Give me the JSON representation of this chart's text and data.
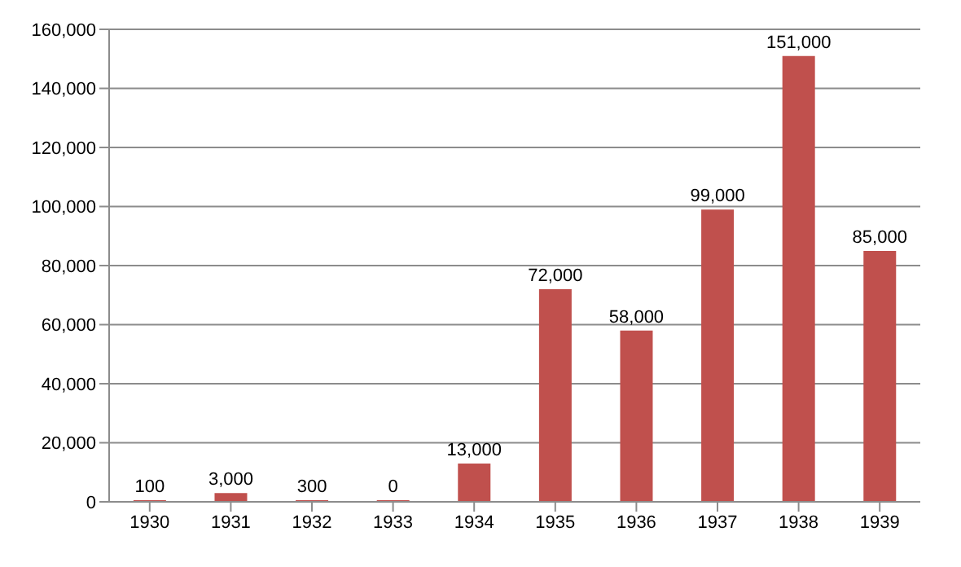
{
  "chart_data": {
    "type": "bar",
    "categories": [
      "1930",
      "1931",
      "1932",
      "1933",
      "1934",
      "1935",
      "1936",
      "1937",
      "1938",
      "1939"
    ],
    "values": [
      100,
      3000,
      300,
      0,
      13000,
      72000,
      58000,
      99000,
      151000,
      85000
    ],
    "value_labels": [
      "100",
      "3,000",
      "300",
      "0",
      "13,000",
      "72,000",
      "58,000",
      "99,000",
      "151,000",
      "85,000"
    ],
    "color": "#c0504d",
    "ylim": [
      0,
      160000
    ],
    "yticks": [
      {
        "value": 0,
        "label": "0"
      },
      {
        "value": 20000,
        "label": "20,000"
      },
      {
        "value": 40000,
        "label": "40,000"
      },
      {
        "value": 60000,
        "label": "60,000"
      },
      {
        "value": 80000,
        "label": "80,000"
      },
      {
        "value": 100000,
        "label": "100,000"
      },
      {
        "value": 120000,
        "label": "120,000"
      },
      {
        "value": 140000,
        "label": "140,000"
      },
      {
        "value": 160000,
        "label": "160,000"
      }
    ],
    "grid": "y"
  }
}
